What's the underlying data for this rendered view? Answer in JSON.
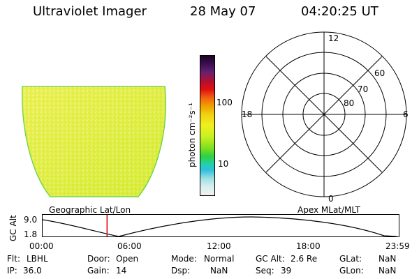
{
  "header": {
    "instrument": "Ultraviolet Imager",
    "date": "28 May 07",
    "time": "04:20:25 UT"
  },
  "image_panel": {
    "caption": "Geographic Lat/Lon"
  },
  "colorbar": {
    "unit_label": "photon cm⁻²s⁻¹",
    "ticks": [
      "100",
      "10"
    ]
  },
  "polar_plot": {
    "caption": "Apex MLat/MLT",
    "mlt_labels": [
      "12",
      "18",
      "6",
      "0"
    ],
    "lat_labels": [
      "60",
      "70",
      "80"
    ]
  },
  "orbit_strip": {
    "y_label": "GC Alt",
    "y_ticks": [
      "9.0",
      "1.8"
    ],
    "x_ticks": [
      "00:00",
      "06:00",
      "12:00",
      "18:00",
      "23:59"
    ],
    "current_time_fraction": 0.181
  },
  "status": {
    "flt_label": "Flt:",
    "flt_value": "LBHL",
    "ip_label": "IP:",
    "ip_value": "36.0",
    "door_label": "Door:",
    "door_value": "Open",
    "gain_label": "Gain:",
    "gain_value": "14",
    "mode_label": "Mode:",
    "mode_value": "Normal",
    "dsp_label": "Dsp:",
    "dsp_value": "NaN",
    "gcalt_label": "GC Alt:",
    "gcalt_value": "2.6 Re",
    "seq_label": "Seq:",
    "seq_value": "39",
    "glat_label": "GLat:",
    "glat_value": "NaN",
    "glon_label": "GLon:",
    "glon_value": "NaN"
  },
  "colors": {
    "image_fill": "#e6f032",
    "image_edge": "#5fd040",
    "marker": "#e00000"
  }
}
